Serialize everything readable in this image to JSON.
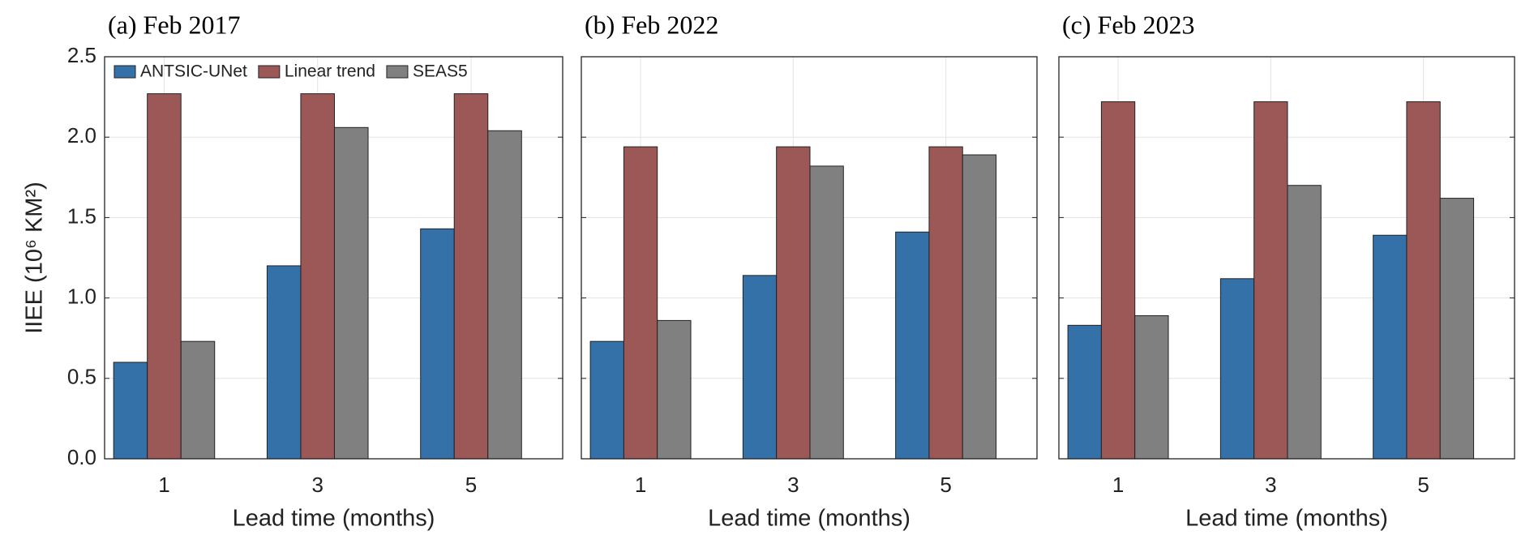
{
  "chart_data": [
    {
      "type": "bar",
      "title": "(a) Feb 2017",
      "y_label": "IIEE (10⁶ KM²)",
      "x_label": "Lead time (months)",
      "categories": [
        "1",
        "3",
        "5"
      ],
      "series": [
        {
          "name": "ANTSIC-UNet",
          "color": "#3471a8",
          "values": [
            0.6,
            1.2,
            1.43
          ]
        },
        {
          "name": "Linear trend",
          "color": "#9b5857",
          "values": [
            2.27,
            2.27,
            2.27
          ]
        },
        {
          "name": "SEAS5",
          "color": "#808080",
          "values": [
            0.73,
            2.06,
            2.04
          ]
        }
      ],
      "ylim": [
        0,
        2.5
      ],
      "yticks": [
        {
          "value": 0,
          "label": "0.0"
        },
        0.5,
        {
          "value": 1,
          "label": "1.0"
        },
        1.5,
        {
          "value": 2,
          "label": "2.0"
        },
        2.5
      ],
      "grid": true,
      "legend": "top-left"
    },
    {
      "type": "bar",
      "title": "(b) Feb 2022",
      "x_label": "Lead time (months)",
      "categories": [
        "1",
        "3",
        "5"
      ],
      "series": [
        {
          "color": "#3471a8",
          "values": [
            0.73,
            1.14,
            1.41
          ]
        },
        {
          "color": "#9b5857",
          "values": [
            1.94,
            1.94,
            1.94
          ]
        },
        {
          "color": "#808080",
          "values": [
            0.86,
            1.82,
            1.89
          ]
        }
      ],
      "ylim": [
        0,
        2.5
      ],
      "yticks": [
        0,
        0.5,
        1,
        1.5,
        2,
        2.5
      ],
      "grid": true
    },
    {
      "type": "bar",
      "title": "(c) Feb 2023",
      "x_label": "Lead time (months)",
      "categories": [
        "1",
        "3",
        "5"
      ],
      "series": [
        {
          "color": "#3471a8",
          "values": [
            0.83,
            1.12,
            1.39
          ]
        },
        {
          "color": "#9b5857",
          "values": [
            2.22,
            2.22,
            2.22
          ]
        },
        {
          "color": "#808080",
          "values": [
            0.89,
            1.7,
            1.62
          ]
        }
      ],
      "ylim": [
        0,
        2.5
      ],
      "yticks": [
        0,
        0.5,
        1,
        1.5,
        2,
        2.5
      ],
      "grid": true
    }
  ]
}
